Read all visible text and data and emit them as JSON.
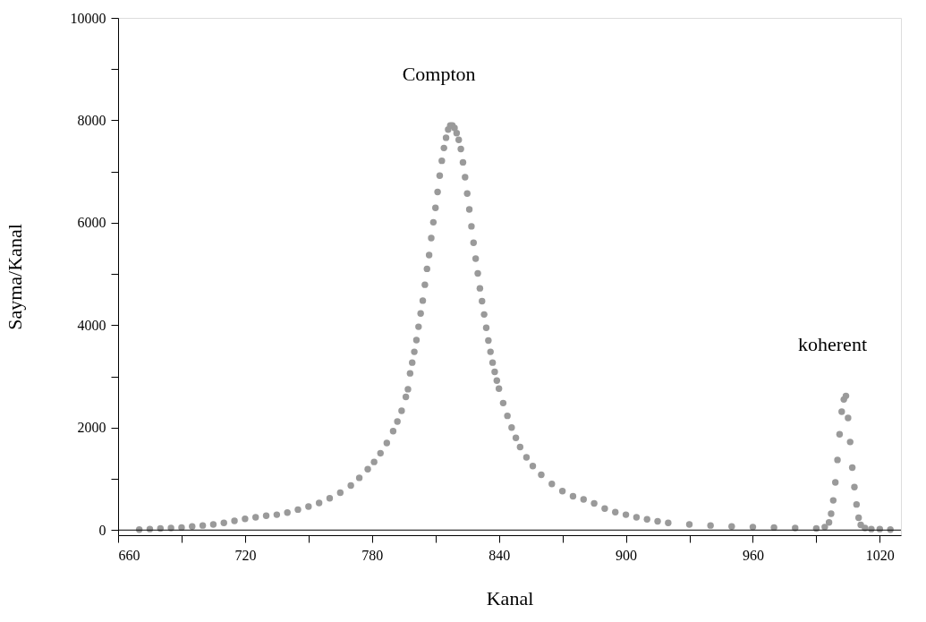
{
  "chart_data": {
    "type": "scatter",
    "xlabel": "Kanal",
    "ylabel": "Sayma/Kanal",
    "xlim": [
      660,
      1030
    ],
    "ylim": [
      -100,
      10000
    ],
    "xticks": [
      660,
      {
        "value": 690,
        "label": null
      },
      720,
      {
        "value": 750,
        "label": null
      },
      780,
      {
        "value": 810,
        "label": null
      },
      840,
      {
        "value": 870,
        "label": null
      },
      900,
      {
        "value": 930,
        "label": null
      },
      960,
      {
        "value": 990,
        "label": null
      },
      1020
    ],
    "yticks": [
      0,
      {
        "value": 1000,
        "label": null
      },
      2000,
      {
        "value": 3000,
        "label": null
      },
      4000,
      {
        "value": 5000,
        "label": null
      },
      6000,
      {
        "value": 7000,
        "label": null
      },
      8000,
      {
        "value": 9000,
        "label": null
      },
      10000
    ],
    "grid": false,
    "marker": "circle",
    "ref_lines": [
      {
        "axis": "y",
        "value": 0,
        "label": null,
        "color": "#000000"
      }
    ],
    "annotations": [
      {
        "text": "Compton",
        "x": 818,
        "y": 7900
      },
      {
        "text": "koherent",
        "x": 1004,
        "y": 2620
      }
    ],
    "series": [
      {
        "color": "#9a9a9a",
        "x": [
          670,
          675,
          680,
          685,
          690,
          695,
          700,
          705,
          710,
          715,
          720,
          725,
          730,
          735,
          740,
          745,
          750,
          755,
          760,
          765,
          770,
          774,
          778,
          781,
          784,
          787,
          790,
          792,
          794,
          796,
          797,
          798,
          799,
          800,
          801,
          802,
          803,
          804,
          805,
          806,
          807,
          808,
          809,
          810,
          811,
          812,
          813,
          814,
          815,
          816,
          817,
          818,
          819,
          820,
          821,
          822,
          823,
          824,
          825,
          826,
          827,
          828,
          829,
          830,
          831,
          832,
          833,
          834,
          835,
          836,
          837,
          838,
          839,
          840,
          842,
          844,
          846,
          848,
          850,
          853,
          856,
          860,
          865,
          870,
          875,
          880,
          885,
          890,
          895,
          900,
          905,
          910,
          915,
          920,
          930,
          940,
          950,
          960,
          970,
          980,
          990,
          994,
          996,
          997,
          998,
          999,
          1000,
          1001,
          1002,
          1003,
          1004,
          1005,
          1006,
          1007,
          1008,
          1009,
          1010,
          1011,
          1013,
          1016,
          1020,
          1025
        ],
        "values": [
          10,
          20,
          30,
          40,
          50,
          70,
          90,
          110,
          140,
          180,
          220,
          250,
          280,
          300,
          340,
          400,
          460,
          530,
          620,
          730,
          870,
          1020,
          1190,
          1330,
          1500,
          1700,
          1930,
          2120,
          2330,
          2600,
          2750,
          3060,
          3270,
          3480,
          3710,
          3970,
          4230,
          4480,
          4790,
          5100,
          5370,
          5700,
          6010,
          6290,
          6600,
          6920,
          7210,
          7460,
          7660,
          7820,
          7900,
          7900,
          7850,
          7750,
          7620,
          7440,
          7180,
          6890,
          6570,
          6260,
          5930,
          5610,
          5300,
          5010,
          4720,
          4470,
          4210,
          3950,
          3700,
          3480,
          3270,
          3090,
          2920,
          2760,
          2480,
          2230,
          2000,
          1800,
          1620,
          1420,
          1250,
          1080,
          900,
          760,
          660,
          600,
          520,
          420,
          350,
          300,
          250,
          210,
          170,
          140,
          110,
          90,
          70,
          60,
          50,
          40,
          30,
          60,
          150,
          320,
          580,
          930,
          1370,
          1870,
          2310,
          2550,
          2620,
          2190,
          1720,
          1220,
          840,
          500,
          240,
          100,
          40,
          20,
          20,
          10
        ]
      }
    ]
  }
}
